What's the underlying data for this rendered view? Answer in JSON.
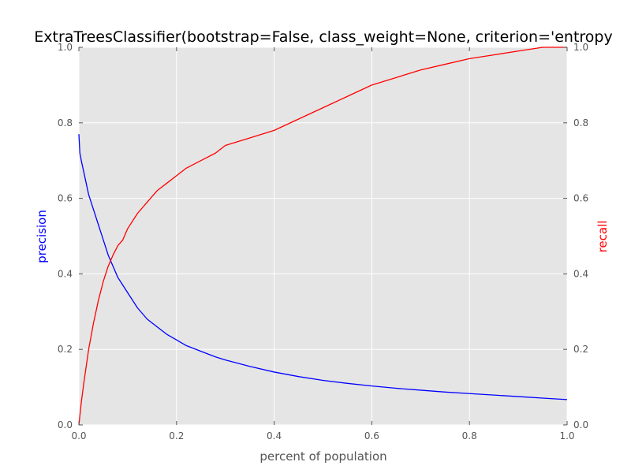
{
  "chart_data": {
    "type": "line",
    "title": "ExtraTreesClassifier(bootstrap=False, class_weight=None, criterion='entropy",
    "xlabel": "percent of population",
    "ylabel_left": "precision",
    "ylabel_right": "recall",
    "xlim": [
      0,
      1
    ],
    "ylim_left": [
      0,
      1
    ],
    "ylim_right": [
      0,
      1
    ],
    "x_ticks": [
      "0.0",
      "0.2",
      "0.4",
      "0.6",
      "0.8",
      "1.0"
    ],
    "y_ticks_left": [
      "0.0",
      "0.2",
      "0.4",
      "0.6",
      "0.8",
      "1.0"
    ],
    "y_ticks_right": [
      "0.0",
      "0.2",
      "0.4",
      "0.6",
      "0.8",
      "1.0"
    ],
    "grid": true,
    "series": [
      {
        "name": "precision",
        "axis": "left",
        "color": "#0000ff",
        "x": [
          0,
          0.002,
          0.005,
          0.01,
          0.015,
          0.02,
          0.03,
          0.04,
          0.05,
          0.06,
          0.07,
          0.08,
          0.09,
          0.1,
          0.12,
          0.14,
          0.16,
          0.18,
          0.2,
          0.22,
          0.25,
          0.28,
          0.3,
          0.35,
          0.4,
          0.45,
          0.5,
          0.55,
          0.6,
          0.65,
          0.7,
          0.75,
          0.8,
          0.85,
          0.9,
          0.95,
          1.0
        ],
        "values": [
          0.77,
          0.72,
          0.7,
          0.67,
          0.64,
          0.61,
          0.57,
          0.53,
          0.49,
          0.45,
          0.42,
          0.39,
          0.37,
          0.35,
          0.31,
          0.28,
          0.26,
          0.24,
          0.225,
          0.21,
          0.195,
          0.18,
          0.172,
          0.155,
          0.14,
          0.128,
          0.118,
          0.11,
          0.103,
          0.097,
          0.092,
          0.087,
          0.083,
          0.079,
          0.075,
          0.071,
          0.067
        ]
      },
      {
        "name": "recall",
        "axis": "right",
        "color": "#ff0000",
        "x": [
          0,
          0.005,
          0.01,
          0.02,
          0.03,
          0.04,
          0.05,
          0.06,
          0.07,
          0.08,
          0.09,
          0.1,
          0.12,
          0.14,
          0.16,
          0.18,
          0.2,
          0.22,
          0.25,
          0.28,
          0.3,
          0.35,
          0.4,
          0.45,
          0.5,
          0.55,
          0.6,
          0.65,
          0.7,
          0.75,
          0.8,
          0.85,
          0.9,
          0.95,
          1.0
        ],
        "values": [
          0.0,
          0.06,
          0.11,
          0.2,
          0.27,
          0.33,
          0.38,
          0.42,
          0.45,
          0.475,
          0.49,
          0.52,
          0.56,
          0.59,
          0.62,
          0.64,
          0.66,
          0.68,
          0.7,
          0.72,
          0.74,
          0.76,
          0.78,
          0.81,
          0.84,
          0.87,
          0.9,
          0.92,
          0.94,
          0.955,
          0.97,
          0.98,
          0.99,
          1.0,
          1.0
        ]
      }
    ]
  }
}
